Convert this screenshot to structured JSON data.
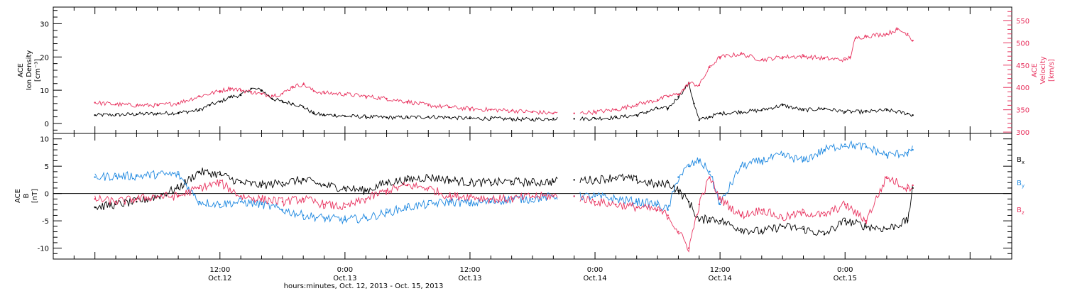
{
  "chart_data": [
    {
      "type": "line",
      "panel": "top",
      "ylabel": [
        "ACE",
        "Ion Density",
        "[cm⁻³]"
      ],
      "ylim": [
        -3,
        35
      ],
      "yticks": [
        0,
        10,
        20,
        30
      ],
      "y2label": [
        "ACE",
        "Velocity",
        "[km/s]"
      ],
      "y2lim": [
        297,
        580
      ],
      "y2ticks": [
        300,
        350,
        400,
        450,
        500,
        550
      ],
      "x_unit": "hours since 2013-10-12 00:00",
      "series": [
        {
          "axis": "left",
          "color": "#000000",
          "x": [
            0,
            2,
            4,
            6,
            8,
            10,
            11,
            12,
            13,
            14,
            15,
            16,
            17,
            18,
            19,
            20,
            21,
            22,
            23,
            24,
            26,
            28,
            30,
            32,
            34,
            36,
            38,
            40,
            42,
            44,
            46,
            48,
            50,
            52,
            53,
            54,
            55,
            56,
            57,
            57.5,
            58,
            59,
            60,
            62,
            64,
            66,
            68,
            70,
            72,
            74,
            76,
            78,
            78.5
          ],
          "values": [
            2.5,
            2.6,
            2.8,
            3.0,
            3.2,
            4.0,
            5.5,
            6.5,
            8.0,
            8.5,
            10.5,
            10.0,
            7.5,
            6.5,
            6.0,
            5.0,
            3.0,
            2.5,
            2.5,
            2.2,
            2.0,
            1.8,
            1.8,
            2.0,
            1.8,
            1.5,
            1.5,
            1.3,
            1.2,
            1.5,
            1.4,
            1.5,
            1.8,
            2.5,
            3.5,
            4.5,
            4.5,
            8.0,
            12.0,
            6.0,
            1.0,
            2.0,
            3.0,
            3.5,
            4.0,
            5.5,
            4.0,
            4.5,
            3.5,
            3.5,
            4.0,
            3.0,
            2.5
          ]
        },
        {
          "axis": "right",
          "color": "#e8335f",
          "x": [
            0,
            2,
            4,
            6,
            8,
            10,
            12,
            13,
            14,
            15,
            16,
            17,
            18,
            19,
            20,
            21,
            22,
            24,
            26,
            28,
            30,
            32,
            34,
            36,
            38,
            40,
            42,
            44,
            46,
            48,
            50,
            52,
            54,
            55,
            56,
            56.5,
            57,
            58,
            59,
            60,
            62,
            64,
            66,
            68,
            70,
            72,
            72.5,
            73,
            74,
            76,
            77,
            78,
            78.5
          ],
          "values": [
            366,
            362,
            360,
            360,
            365,
            380,
            392,
            398,
            394,
            390,
            385,
            382,
            386,
            402,
            407,
            392,
            388,
            385,
            380,
            375,
            368,
            360,
            356,
            352,
            350,
            348,
            345,
            342,
            342,
            345,
            350,
            362,
            372,
            380,
            385,
            395,
            410,
            405,
            445,
            468,
            475,
            462,
            468,
            470,
            465,
            462,
            468,
            510,
            515,
            520,
            530,
            520,
            505
          ]
        }
      ],
      "gaps_hours": [
        [
          44.5,
          46.5
        ]
      ]
    },
    {
      "type": "line",
      "panel": "bottom",
      "ylabel": [
        "ACE",
        "B",
        "[nT]"
      ],
      "ylim": [
        -12,
        11
      ],
      "yticks": [
        -10,
        -5,
        0,
        5,
        10
      ],
      "zero_line": true,
      "series": [
        {
          "name": "B",
          "sub": "x",
          "color": "#000000",
          "x": [
            0,
            2,
            4,
            6,
            8,
            10,
            12,
            14,
            16,
            18,
            20,
            22,
            24,
            26,
            28,
            30,
            32,
            34,
            36,
            38,
            40,
            42,
            44,
            46,
            48,
            50,
            52,
            54,
            55,
            56,
            57,
            58,
            59,
            60,
            62,
            64,
            66,
            68,
            70,
            72,
            74,
            76,
            78,
            78.5
          ],
          "values": [
            -2.5,
            -2.0,
            -1.5,
            -0.5,
            1.0,
            4.0,
            3.5,
            2.0,
            1.5,
            2.0,
            2.5,
            1.5,
            1.0,
            0.5,
            2.0,
            2.5,
            3.0,
            2.5,
            2.0,
            2.0,
            2.2,
            2.0,
            2.2,
            2.5,
            2.5,
            3.0,
            2.5,
            1.5,
            2.0,
            0.5,
            -1.5,
            -5.0,
            -4.5,
            -5.0,
            -6.5,
            -7.0,
            -6.0,
            -6.5,
            -7.5,
            -5.0,
            -6.0,
            -6.5,
            -5.0,
            1.0
          ]
        },
        {
          "name": "B",
          "sub": "y",
          "color": "#1e88e0",
          "x": [
            0,
            2,
            4,
            6,
            8,
            10,
            12,
            14,
            16,
            18,
            20,
            22,
            24,
            26,
            28,
            30,
            32,
            34,
            36,
            38,
            40,
            42,
            44,
            46,
            48,
            50,
            52,
            54,
            55,
            56,
            57,
            58,
            59,
            60,
            62,
            64,
            66,
            68,
            70,
            72,
            74,
            76,
            78,
            78.5
          ],
          "values": [
            3.0,
            3.2,
            3.2,
            3.5,
            3.5,
            -1.5,
            -2.0,
            -1.5,
            -2.0,
            -3.0,
            -4.0,
            -4.5,
            -4.8,
            -4.5,
            -3.5,
            -2.5,
            -2.0,
            -1.5,
            -1.8,
            -1.5,
            -1.0,
            -1.0,
            -0.5,
            -0.5,
            -0.5,
            -1.0,
            -1.5,
            -2.0,
            -3.0,
            3.0,
            5.0,
            6.0,
            4.0,
            -2.0,
            5.0,
            6.0,
            7.0,
            6.0,
            8.0,
            9.0,
            8.5,
            7.0,
            7.5,
            8.0
          ]
        },
        {
          "name": "B",
          "sub": "z",
          "color": "#e8335f",
          "x": [
            0,
            2,
            4,
            6,
            8,
            10,
            12,
            14,
            16,
            18,
            20,
            22,
            24,
            26,
            28,
            30,
            32,
            34,
            36,
            38,
            40,
            42,
            44,
            46,
            48,
            50,
            52,
            54,
            55,
            56,
            57,
            58,
            59,
            60,
            62,
            64,
            66,
            68,
            70,
            72,
            74,
            76,
            78,
            78.5
          ],
          "values": [
            -1.0,
            -1.5,
            -1.0,
            -0.5,
            -0.5,
            1.0,
            2.0,
            -0.5,
            -1.0,
            -1.5,
            -1.0,
            -2.0,
            -2.5,
            -1.0,
            0.5,
            1.5,
            1.0,
            -0.5,
            -0.5,
            -1.0,
            -1.0,
            -0.5,
            -0.5,
            -0.5,
            -1.5,
            -2.0,
            -2.5,
            -3.0,
            -4.0,
            -7.0,
            -10.0,
            -2.0,
            3.0,
            -1.0,
            -4.0,
            -3.0,
            -4.5,
            -3.5,
            -4.0,
            -2.0,
            -5.0,
            3.0,
            1.0,
            1.5
          ]
        }
      ],
      "gaps_hours": [
        [
          44.5,
          46.5
        ]
      ]
    }
  ],
  "xaxis": {
    "range_hours": [
      -4,
      88
    ],
    "ticks": [
      {
        "hours": 12,
        "top": "12:00",
        "bottom": "Oct.12"
      },
      {
        "hours": 24,
        "top": "0:00",
        "bottom": "Oct.13"
      },
      {
        "hours": 36,
        "top": "12:00",
        "bottom": "Oct.13"
      },
      {
        "hours": 48,
        "top": "0:00",
        "bottom": "Oct.14"
      },
      {
        "hours": 60,
        "top": "12:00",
        "bottom": "Oct.14"
      },
      {
        "hours": 72,
        "top": "0:00",
        "bottom": "Oct.15"
      }
    ],
    "title": "hours:minutes, Oct. 12, 2013 - Oct. 15, 2013"
  },
  "colors": {
    "axis": "#000000",
    "velocity": "#e8335f",
    "by": "#1e88e0",
    "bz": "#e8335f"
  }
}
